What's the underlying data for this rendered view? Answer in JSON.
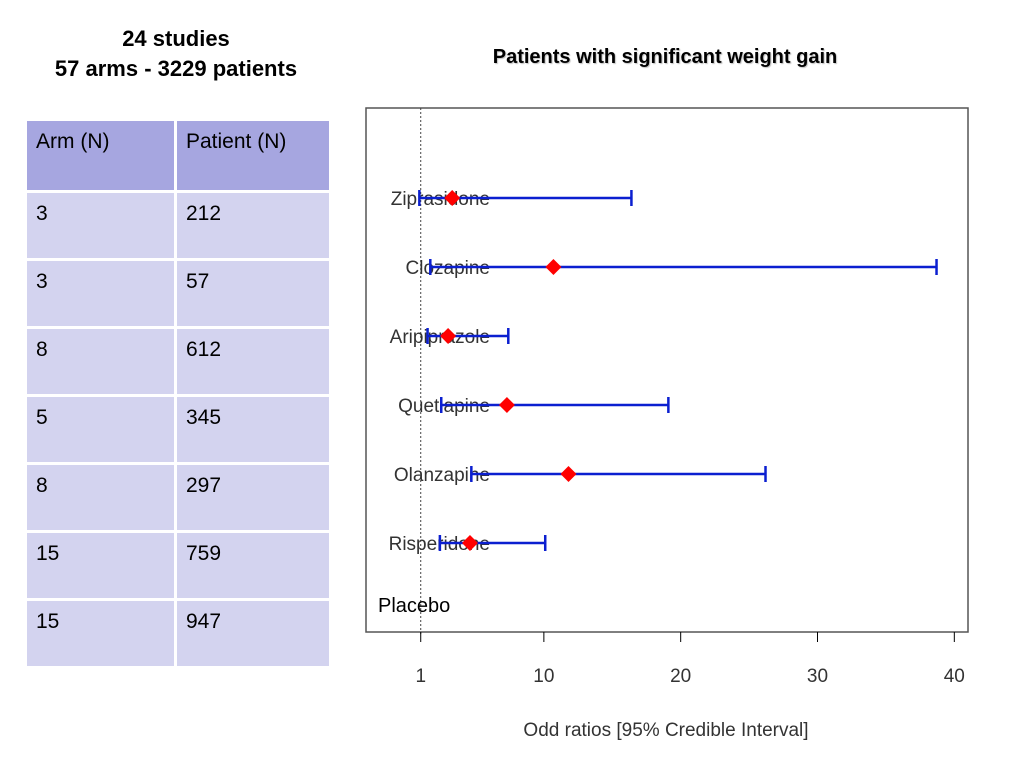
{
  "summary": {
    "line1": "24 studies",
    "line2": "57 arms - 3229 patients"
  },
  "table": {
    "headers": [
      "Arm (N)",
      "Patient (N)"
    ],
    "rows": [
      [
        "3",
        "212"
      ],
      [
        "3",
        "57"
      ],
      [
        "8",
        "612"
      ],
      [
        "5",
        "345"
      ],
      [
        "8",
        "297"
      ],
      [
        "15",
        "759"
      ],
      [
        "15",
        "947"
      ]
    ]
  },
  "chart_data": {
    "type": "scatter",
    "title": "Patients with significant weight gain",
    "xlabel": "Odd ratios [95% Credible  Interval]",
    "ylabel": "",
    "xlim": [
      -3,
      41
    ],
    "xticks": [
      1,
      10,
      20,
      30,
      40
    ],
    "reference_line": {
      "x": 1,
      "label": "Placebo",
      "style": "dotted"
    },
    "grid": false,
    "points": [
      {
        "label": "Ziprasidone",
        "estimate": 3.3,
        "lower": 0.9,
        "upper": 16.4
      },
      {
        "label": "Clozapine",
        "estimate": 10.7,
        "lower": 1.7,
        "upper": 38.7
      },
      {
        "label": "Aripiprazole",
        "estimate": 3.0,
        "lower": 1.5,
        "upper": 7.4
      },
      {
        "label": "Quetiapine",
        "estimate": 7.3,
        "lower": 2.5,
        "upper": 19.1
      },
      {
        "label": "Olanzapine",
        "estimate": 11.8,
        "lower": 4.7,
        "upper": 26.2
      },
      {
        "label": "Risperidone",
        "estimate": 4.6,
        "lower": 2.4,
        "upper": 10.1
      }
    ],
    "colors": {
      "interval": "#0b1fd0",
      "estimate": "#ff0000",
      "axis": "#000000"
    }
  }
}
